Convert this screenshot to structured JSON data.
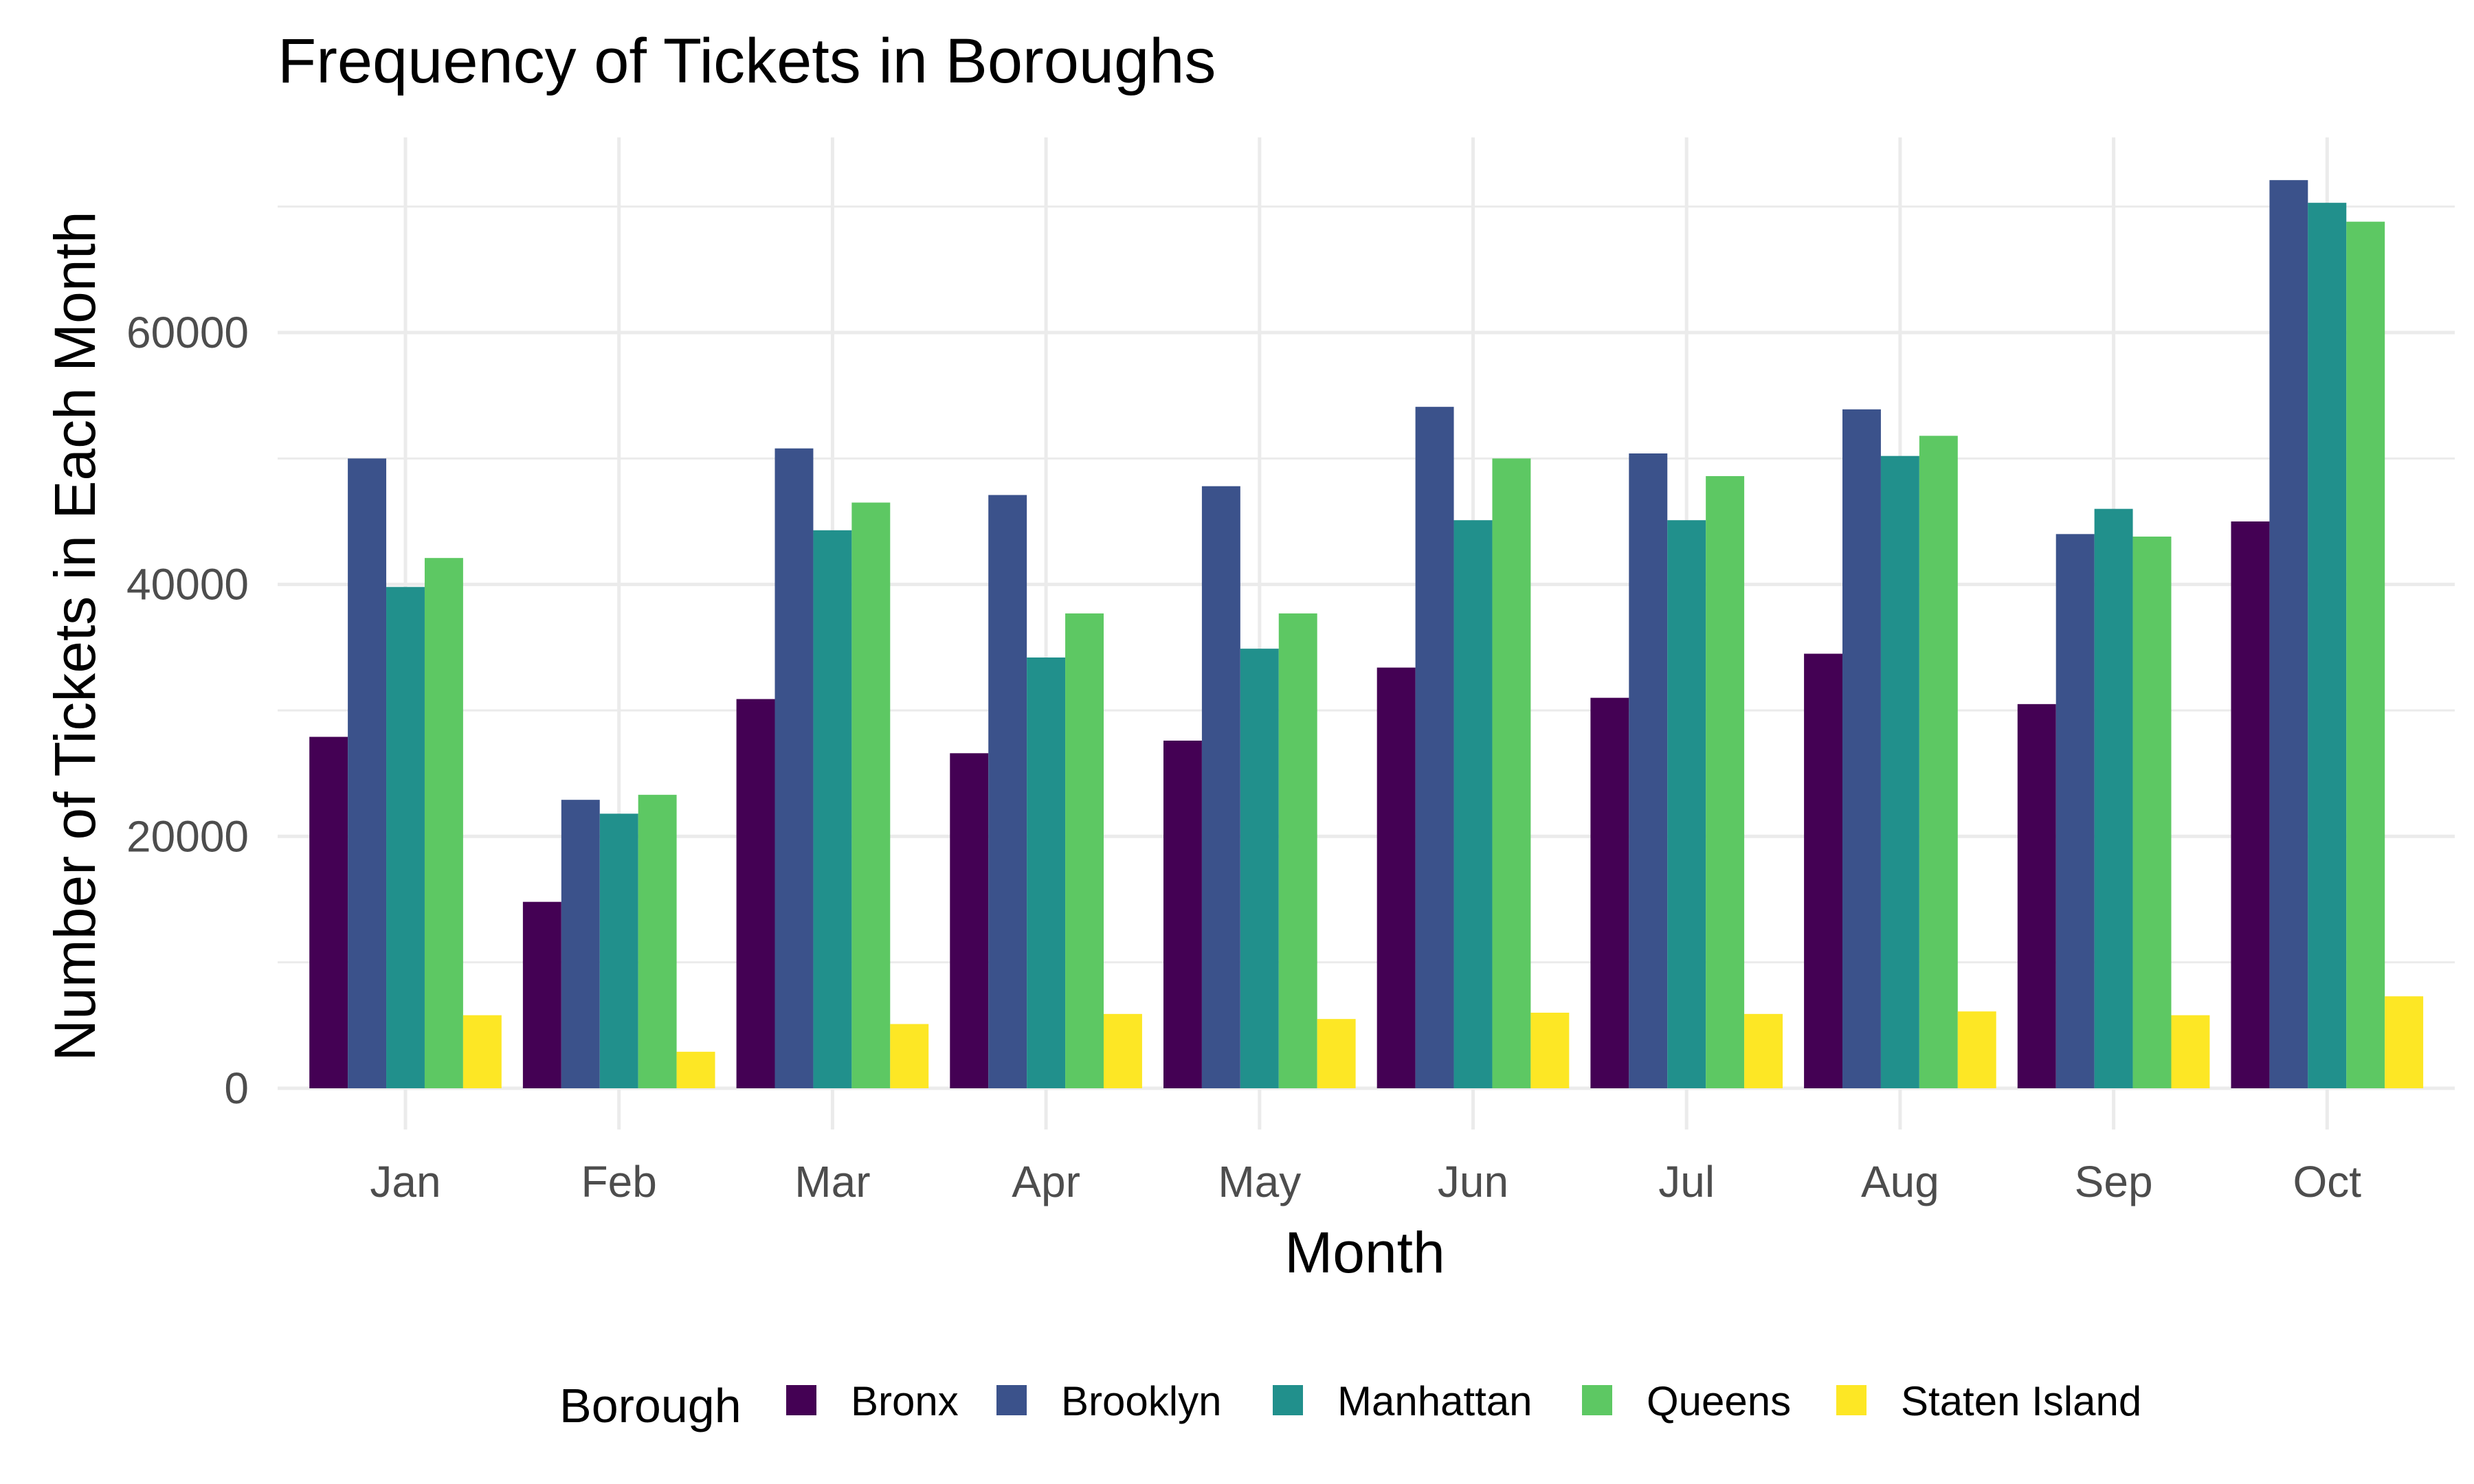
{
  "chart_data": {
    "type": "bar",
    "title": "Frequency of Tickets in Boroughs",
    "xlabel": "Month",
    "ylabel": "Number of Tickets in Each Month",
    "categories": [
      "Jan",
      "Feb",
      "Mar",
      "Apr",
      "May",
      "Jun",
      "Jul",
      "Aug",
      "Sep",
      "Oct"
    ],
    "ylim": [
      0,
      72000
    ],
    "yticks": [
      0,
      20000,
      40000,
      60000
    ],
    "grid": true,
    "legend": {
      "title": "Borough",
      "position": "bottom"
    },
    "series": [
      {
        "name": "Bronx",
        "color": "#440154",
        "values": [
          27900,
          14800,
          30900,
          26600,
          27600,
          33400,
          31000,
          34500,
          30500,
          45000
        ]
      },
      {
        "name": "Brooklyn",
        "color": "#3b528b",
        "values": [
          50000,
          22900,
          50800,
          47100,
          47800,
          54100,
          50400,
          53900,
          44000,
          72100
        ]
      },
      {
        "name": "Manhattan",
        "color": "#21908c",
        "values": [
          39800,
          21800,
          44300,
          34200,
          34900,
          45100,
          45100,
          50200,
          46000,
          70300
        ]
      },
      {
        "name": "Queens",
        "color": "#5dc863",
        "values": [
          42100,
          23300,
          46500,
          37700,
          37700,
          50000,
          48600,
          51800,
          43800,
          68800
        ]
      },
      {
        "name": "Staten Island",
        "color": "#fde725",
        "values": [
          5800,
          2900,
          5100,
          5900,
          5500,
          6000,
          5900,
          6100,
          5800,
          7300
        ]
      }
    ]
  }
}
